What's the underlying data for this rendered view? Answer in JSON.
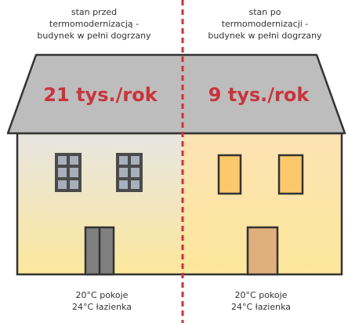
{
  "before": {
    "caption": [
      "stan przed",
      "termomodernizacją -",
      "budynek w pełni dogrzany"
    ],
    "cost": "21 tys./rok",
    "temps": [
      "20°C pokoje",
      "24°C łazienka"
    ]
  },
  "after": {
    "caption": [
      "stan po",
      "termomodernizacji -",
      "budynek w pełni dogrzany"
    ],
    "cost": "9 tys./rok",
    "temps": [
      "20°C pokoje",
      "24°C łazienka"
    ]
  }
}
